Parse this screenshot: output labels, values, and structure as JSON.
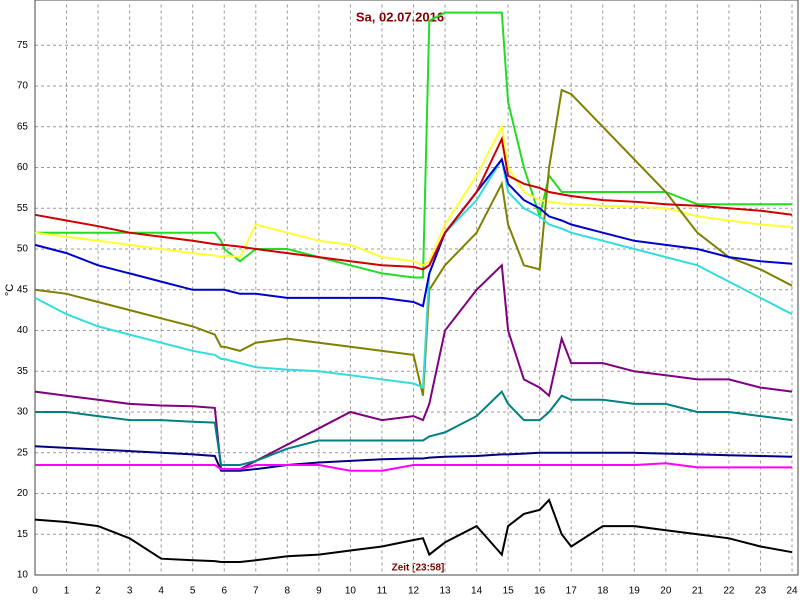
{
  "chart_data": {
    "type": "line",
    "title": "Sa, 02.07.2016",
    "x_label": "Zeit [23:58]",
    "y_label": "°C",
    "x": [
      0,
      1,
      2,
      3,
      4,
      5,
      5.7,
      5.9,
      6,
      6.5,
      7,
      8,
      9,
      10,
      11,
      12,
      12.3,
      12.5,
      13,
      14,
      14.8,
      15,
      15.5,
      16,
      16.3,
      16.7,
      17,
      18,
      19,
      20,
      21,
      22,
      23,
      24
    ],
    "xlim": [
      0,
      24
    ],
    "ylim": [
      10,
      80
    ],
    "xticks": [
      0,
      1,
      2,
      3,
      4,
      5,
      6,
      7,
      8,
      9,
      10,
      11,
      12,
      13,
      14,
      15,
      16,
      17,
      18,
      19,
      20,
      21,
      22,
      23,
      24
    ],
    "yticks": [
      10,
      15,
      20,
      25,
      30,
      35,
      40,
      45,
      50,
      55,
      60,
      65,
      70,
      75
    ],
    "grid": true,
    "series": [
      {
        "color": "#22dd22",
        "values": [
          52,
          52,
          52,
          52,
          52,
          52,
          52,
          51,
          50,
          48.5,
          50,
          50,
          49,
          48,
          47,
          46.5,
          46.5,
          78,
          79,
          79,
          79,
          68,
          60,
          54,
          59,
          57,
          57,
          57,
          57,
          57,
          55.5,
          55.5,
          55.5,
          55.5
        ]
      },
      {
        "color": "#ffff33",
        "values": [
          52,
          51.5,
          51,
          50.5,
          50,
          49.5,
          49.2,
          49,
          49.2,
          49,
          53,
          52,
          51,
          50.5,
          49,
          48.5,
          48,
          48.5,
          53,
          59,
          65,
          60,
          57,
          56,
          55.8,
          55.6,
          55.5,
          55.3,
          55.2,
          55,
          54,
          53.5,
          53,
          52.7
        ]
      },
      {
        "color": "#808000",
        "values": [
          45,
          44.5,
          43.5,
          42.5,
          41.5,
          40.5,
          39.5,
          38,
          38,
          37.5,
          38.5,
          39,
          38.5,
          38,
          37.5,
          37,
          32,
          45,
          48,
          52,
          58,
          53,
          48,
          47.5,
          60,
          69.5,
          69,
          65,
          61,
          57,
          52,
          49,
          47.5,
          45.5
        ]
      },
      {
        "color": "#33dddd",
        "values": [
          44,
          42,
          40.5,
          39.5,
          38.5,
          37.5,
          37,
          36.5,
          36.5,
          36,
          35.5,
          35.2,
          35,
          34.5,
          34,
          33.5,
          33,
          47,
          52,
          56,
          61,
          57,
          55,
          54,
          53,
          52.5,
          52,
          51,
          50,
          49,
          48,
          46,
          44,
          42
        ]
      },
      {
        "color": "#0000cc",
        "values": [
          50.5,
          49.5,
          48,
          47,
          46,
          45,
          45,
          45,
          45,
          44.5,
          44.5,
          44,
          44,
          44,
          44,
          43.5,
          43,
          47,
          52,
          57,
          61,
          58,
          56,
          55,
          54,
          53.5,
          53,
          52,
          51,
          50.5,
          50,
          49,
          48.5,
          48.2
        ]
      },
      {
        "color": "#cc0000",
        "values": [
          54.2,
          53.5,
          52.8,
          52,
          51.5,
          51,
          50.6,
          50.5,
          50.5,
          50.3,
          50,
          49.5,
          49,
          48.5,
          48,
          47.8,
          47.5,
          48,
          52,
          57,
          63.5,
          59,
          58,
          57.5,
          57,
          56.7,
          56.5,
          56,
          55.8,
          55.5,
          55.3,
          55,
          54.7,
          54.2
        ]
      },
      {
        "color": "#800080",
        "values": [
          32.5,
          32,
          31.5,
          31,
          30.8,
          30.7,
          30.5,
          23,
          23,
          23,
          24,
          26,
          28,
          30,
          29,
          29.5,
          29,
          31,
          40,
          45,
          48,
          40,
          34,
          33,
          32,
          39,
          36,
          36,
          35,
          34.5,
          34,
          34,
          33,
          32.5
        ]
      },
      {
        "color": "#008080",
        "values": [
          30,
          30,
          29.5,
          29,
          29,
          28.8,
          28.7,
          23.5,
          23.5,
          23.5,
          24,
          25.5,
          26.5,
          26.5,
          26.5,
          26.5,
          26.5,
          27,
          27.5,
          29.5,
          32.5,
          31,
          29,
          29,
          30,
          32,
          31.5,
          31.5,
          31,
          31,
          30,
          30,
          29.5,
          29
        ]
      },
      {
        "color": "#000080",
        "values": [
          25.8,
          25.6,
          25.4,
          25.2,
          25,
          24.8,
          24.6,
          22.8,
          22.8,
          22.8,
          23,
          23.5,
          23.8,
          24,
          24.2,
          24.3,
          24.3,
          24.4,
          24.5,
          24.6,
          24.8,
          24.8,
          24.9,
          25,
          25,
          25,
          25,
          25,
          25,
          24.9,
          24.8,
          24.7,
          24.6,
          24.5
        ]
      },
      {
        "color": "#ff00ff",
        "values": [
          23.5,
          23.5,
          23.5,
          23.5,
          23.5,
          23.5,
          23.5,
          23,
          23,
          23,
          23.5,
          23.5,
          23.5,
          22.8,
          22.8,
          23.5,
          23.5,
          23.5,
          23.5,
          23.5,
          23.5,
          23.5,
          23.5,
          23.5,
          23.5,
          23.5,
          23.5,
          23.5,
          23.5,
          23.7,
          23.2,
          23.2,
          23.2,
          23.2
        ]
      },
      {
        "color": "#000000",
        "values": [
          16.8,
          16.5,
          16,
          14.5,
          12,
          11.8,
          11.7,
          11.6,
          11.6,
          11.6,
          11.8,
          12.3,
          12.5,
          13,
          13.5,
          14.3,
          14.5,
          12.5,
          14,
          16,
          12.5,
          16,
          17.5,
          18,
          19.2,
          15,
          13.5,
          16,
          16,
          15.5,
          15,
          14.5,
          13.5,
          12.8
        ]
      }
    ]
  }
}
